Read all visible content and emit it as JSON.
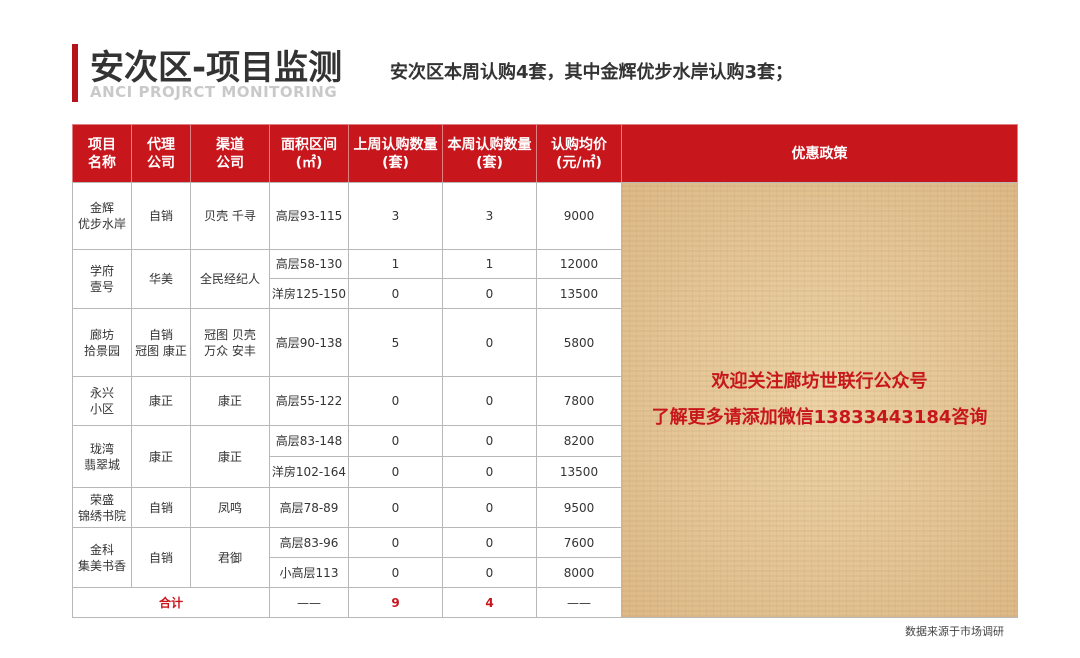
{
  "header": {
    "title": "安次区-项目监测",
    "subtitle": "ANCI PROJRCT MONITORING",
    "headline": "安次区本周认购4套，其中金辉优步水岸认购3套；"
  },
  "table": {
    "columns": [
      [
        "项目",
        "名称"
      ],
      [
        "代理",
        "公司"
      ],
      [
        "渠道",
        "公司"
      ],
      [
        "面积区间",
        "(㎡)"
      ],
      [
        "上周认购数量",
        "(套)"
      ],
      [
        "本周认购数量",
        "(套)"
      ],
      [
        "认购均价",
        "(元/㎡)"
      ],
      [
        "优惠政策"
      ]
    ],
    "projects": [
      {
        "name": [
          "金辉",
          "优步水岸"
        ],
        "agent": [
          "自销"
        ],
        "channel": [
          "贝壳 千寻"
        ],
        "rows": [
          {
            "area": "高层93-115",
            "last_week": 3,
            "this_week": 3,
            "price": 9000
          }
        ]
      },
      {
        "name": [
          "学府",
          "壹号"
        ],
        "agent": [
          "华美"
        ],
        "channel": [
          "全民经纪人"
        ],
        "rows": [
          {
            "area": "高层58-130",
            "last_week": 1,
            "this_week": 1,
            "price": 12000
          },
          {
            "area": "洋房125-150",
            "last_week": 0,
            "this_week": 0,
            "price": 13500
          }
        ]
      },
      {
        "name": [
          "廊坊",
          "拾景园"
        ],
        "agent": [
          "自销",
          "冠图 康正"
        ],
        "channel": [
          "冠图 贝壳",
          "万众 安丰"
        ],
        "rows": [
          {
            "area": "高层90-138",
            "last_week": 5,
            "this_week": 0,
            "price": 5800
          }
        ]
      },
      {
        "name": [
          "永兴",
          "小区"
        ],
        "agent": [
          "康正"
        ],
        "channel": [
          "康正"
        ],
        "rows": [
          {
            "area": "高层55-122",
            "last_week": 0,
            "this_week": 0,
            "price": 7800
          }
        ]
      },
      {
        "name": [
          "珑湾",
          "翡翠城"
        ],
        "agent": [
          "康正"
        ],
        "channel": [
          "康正"
        ],
        "rows": [
          {
            "area": "高层83-148",
            "last_week": 0,
            "this_week": 0,
            "price": 8200
          },
          {
            "area": "洋房102-164",
            "last_week": 0,
            "this_week": 0,
            "price": 13500
          }
        ]
      },
      {
        "name": [
          "荣盛",
          "锦绣书院"
        ],
        "agent": [
          "自销"
        ],
        "channel": [
          "凤鸣"
        ],
        "rows": [
          {
            "area": "高层78-89",
            "last_week": 0,
            "this_week": 0,
            "price": 9500
          }
        ]
      },
      {
        "name": [
          "金科",
          "集美书香"
        ],
        "agent": [
          "自销"
        ],
        "channel": [
          "君御"
        ],
        "rows": [
          {
            "area": "高层83-96",
            "last_week": 0,
            "this_week": 0,
            "price": 7600
          },
          {
            "area": "小高层113",
            "last_week": 0,
            "this_week": 0,
            "price": 8000
          }
        ]
      }
    ],
    "total": {
      "label": "合计",
      "area": "——",
      "last_week": 9,
      "this_week": 4,
      "price": "——"
    },
    "policy": [
      "欢迎关注廊坊世联行公众号",
      "了解更多请添加微信13833443184咨询"
    ]
  },
  "footer": {
    "source": "数据来源于市场调研"
  }
}
